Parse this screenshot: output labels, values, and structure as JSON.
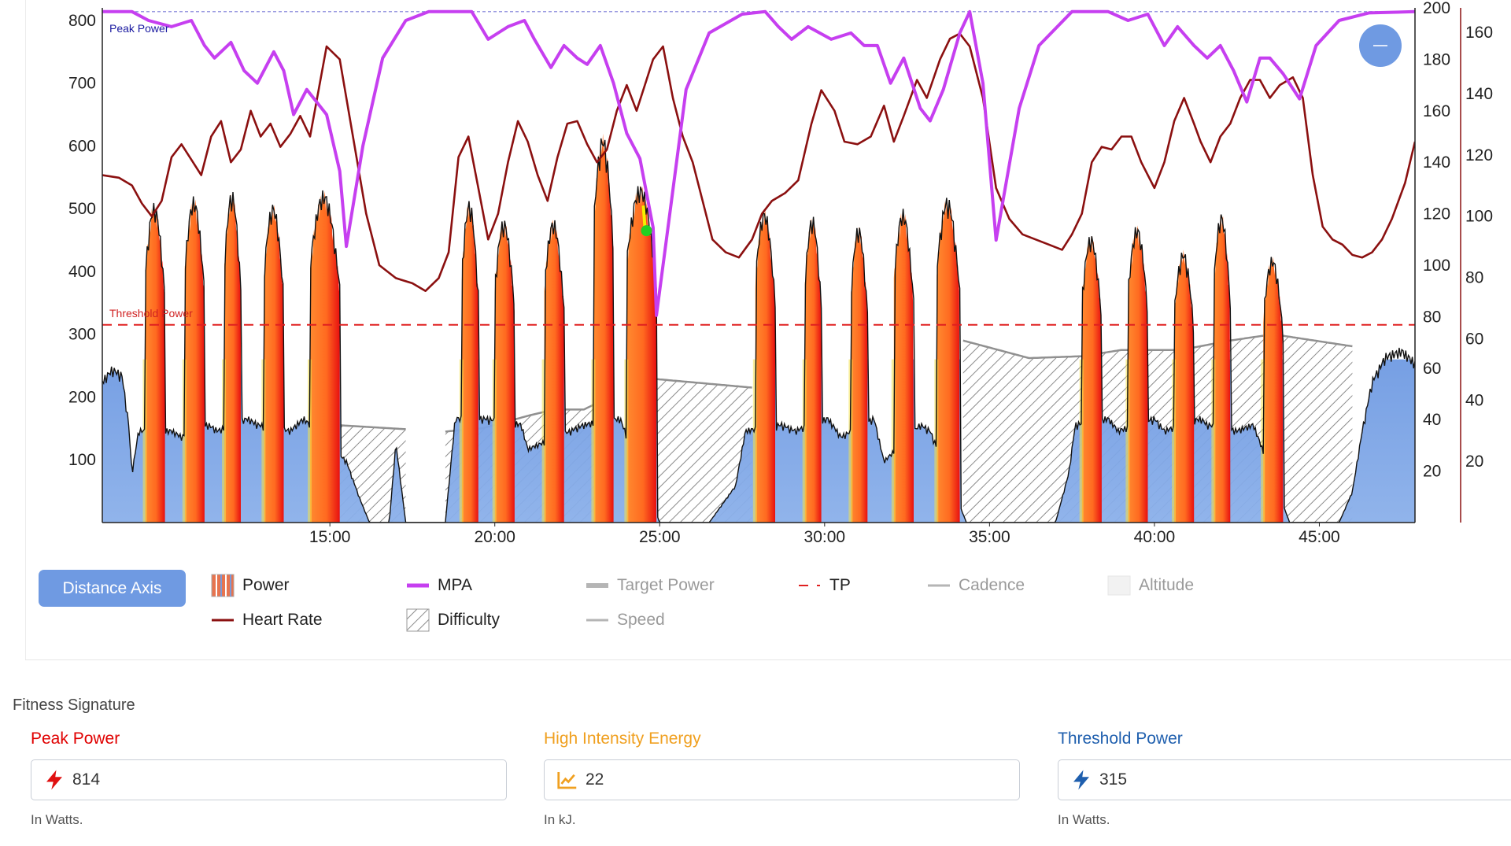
{
  "chart_data": {
    "type": "area",
    "x_unit": "minutes",
    "xlim": [
      8.1,
      47.9
    ],
    "x_ticks": [
      {
        "value": 15,
        "label": "15:00"
      },
      {
        "value": 20,
        "label": "20:00"
      },
      {
        "value": 25,
        "label": "25:00"
      },
      {
        "value": 30,
        "label": "30:00"
      },
      {
        "value": 35,
        "label": "35:00"
      },
      {
        "value": 40,
        "label": "40:00"
      },
      {
        "value": 45,
        "label": "45:00"
      }
    ],
    "left_axis": {
      "label": "",
      "ylim": [
        0,
        820
      ],
      "ticks": [
        100,
        200,
        300,
        400,
        500,
        600,
        700,
        800
      ]
    },
    "right_axis_1": {
      "label": "",
      "ylim": [
        0,
        200
      ],
      "ticks": [
        20,
        40,
        60,
        80,
        100,
        120,
        140,
        160,
        180,
        200
      ]
    },
    "right_axis_2": {
      "label": "",
      "ylim": [
        0,
        168
      ],
      "ticks": [
        20,
        40,
        60,
        80,
        100,
        120,
        140,
        160
      ]
    },
    "annotations": {
      "peak_power": "Peak Power",
      "threshold_power": "Threshold Power"
    },
    "peak_power_value": 814,
    "threshold_power_value": 315,
    "intervals": [
      {
        "start": 9.4,
        "end": 10.0,
        "peak": 510
      },
      {
        "start": 10.6,
        "end": 11.2,
        "peak": 520
      },
      {
        "start": 11.8,
        "end": 12.3,
        "peak": 530
      },
      {
        "start": 13.0,
        "end": 13.6,
        "peak": 510
      },
      {
        "start": 14.4,
        "end": 15.3,
        "peak": 530
      },
      {
        "start": 19.0,
        "end": 19.5,
        "peak": 515
      },
      {
        "start": 20.0,
        "end": 20.6,
        "peak": 485
      },
      {
        "start": 21.5,
        "end": 22.1,
        "peak": 485
      },
      {
        "start": 23.0,
        "end": 23.6,
        "peak": 620
      },
      {
        "start": 24.0,
        "end": 24.9,
        "peak": 540
      },
      {
        "start": 27.9,
        "end": 28.5,
        "peak": 500
      },
      {
        "start": 29.4,
        "end": 29.9,
        "peak": 490
      },
      {
        "start": 30.8,
        "end": 31.3,
        "peak": 475
      },
      {
        "start": 32.1,
        "end": 32.7,
        "peak": 500
      },
      {
        "start": 33.4,
        "end": 34.1,
        "peak": 520
      },
      {
        "start": 37.8,
        "end": 38.4,
        "peak": 460
      },
      {
        "start": 39.2,
        "end": 39.8,
        "peak": 475
      },
      {
        "start": 40.6,
        "end": 41.2,
        "peak": 435
      },
      {
        "start": 41.8,
        "end": 42.3,
        "peak": 495
      },
      {
        "start": 43.3,
        "end": 43.9,
        "peak": 425
      }
    ],
    "power_baseline": [
      [
        8.1,
        230
      ],
      [
        8.4,
        250
      ],
      [
        8.7,
        240
      ],
      [
        8.9,
        160
      ],
      [
        9.0,
        80
      ],
      [
        9.2,
        150
      ],
      [
        10.2,
        150
      ],
      [
        10.5,
        140
      ],
      [
        11.3,
        160
      ],
      [
        11.6,
        150
      ],
      [
        12.5,
        170
      ],
      [
        12.8,
        160
      ],
      [
        13.8,
        150
      ],
      [
        14.2,
        170
      ],
      [
        15.5,
        100
      ],
      [
        15.9,
        40
      ],
      [
        16.2,
        0
      ],
      [
        16.8,
        0
      ],
      [
        17.0,
        130
      ],
      [
        17.3,
        0
      ],
      [
        18.5,
        0
      ],
      [
        18.8,
        170
      ],
      [
        19.7,
        170
      ],
      [
        20.8,
        160
      ],
      [
        21.0,
        120
      ],
      [
        22.3,
        150
      ],
      [
        22.7,
        160
      ],
      [
        23.8,
        170
      ],
      [
        25.0,
        0
      ],
      [
        26.5,
        0
      ],
      [
        27.3,
        60
      ],
      [
        27.6,
        150
      ],
      [
        28.7,
        160
      ],
      [
        29.1,
        150
      ],
      [
        30.1,
        170
      ],
      [
        30.5,
        140
      ],
      [
        31.5,
        170
      ],
      [
        31.8,
        100
      ],
      [
        32.9,
        160
      ],
      [
        33.2,
        150
      ],
      [
        34.3,
        0
      ],
      [
        37.0,
        0
      ],
      [
        37.4,
        80
      ],
      [
        37.6,
        160
      ],
      [
        38.6,
        170
      ],
      [
        38.9,
        150
      ],
      [
        40.0,
        170
      ],
      [
        40.3,
        150
      ],
      [
        41.4,
        170
      ],
      [
        41.6,
        160
      ],
      [
        42.5,
        150
      ],
      [
        43.0,
        160
      ],
      [
        44.1,
        0
      ],
      [
        45.6,
        0
      ],
      [
        46.0,
        50
      ],
      [
        46.3,
        150
      ],
      [
        46.6,
        230
      ],
      [
        47.0,
        270
      ],
      [
        47.5,
        280
      ],
      [
        47.9,
        260
      ]
    ],
    "difficulty": [
      [
        15.3,
        155
      ],
      [
        18.5,
        145
      ],
      [
        19.6,
        150
      ],
      [
        21.0,
        170
      ],
      [
        21.8,
        180
      ],
      [
        22.7,
        180
      ],
      [
        24.6,
        230
      ],
      [
        27.8,
        215
      ],
      [
        28.7,
        215
      ],
      [
        30.0,
        230
      ],
      [
        31.4,
        245
      ],
      [
        32.7,
        250
      ],
      [
        34.2,
        290
      ],
      [
        36.2,
        262
      ],
      [
        37.8,
        265
      ],
      [
        39.0,
        275
      ],
      [
        40.8,
        275
      ],
      [
        42.3,
        290
      ],
      [
        43.6,
        300
      ],
      [
        47.6,
        268
      ]
    ],
    "difficulty_segments": [
      [
        15.3,
        17.3
      ],
      [
        18.5,
        23.0
      ],
      [
        24.6,
        27.8
      ],
      [
        34.2,
        46.0
      ]
    ],
    "heart_rate": [
      [
        8.1,
        135
      ],
      [
        8.6,
        134
      ],
      [
        9.0,
        131
      ],
      [
        9.3,
        124
      ],
      [
        9.6,
        119
      ],
      [
        9.9,
        125
      ],
      [
        10.2,
        142
      ],
      [
        10.5,
        147
      ],
      [
        10.8,
        141
      ],
      [
        11.1,
        135
      ],
      [
        11.4,
        150
      ],
      [
        11.7,
        156
      ],
      [
        12.0,
        140
      ],
      [
        12.3,
        145
      ],
      [
        12.6,
        160
      ],
      [
        12.9,
        150
      ],
      [
        13.2,
        155
      ],
      [
        13.5,
        146
      ],
      [
        13.8,
        151
      ],
      [
        14.1,
        158
      ],
      [
        14.4,
        150
      ],
      [
        14.9,
        185
      ],
      [
        15.3,
        180
      ],
      [
        15.7,
        150
      ],
      [
        16.1,
        120
      ],
      [
        16.5,
        100
      ],
      [
        17.0,
        95
      ],
      [
        17.5,
        93
      ],
      [
        17.9,
        90
      ],
      [
        18.3,
        95
      ],
      [
        18.6,
        105
      ],
      [
        18.9,
        142
      ],
      [
        19.2,
        150
      ],
      [
        19.5,
        130
      ],
      [
        19.8,
        110
      ],
      [
        20.1,
        120
      ],
      [
        20.4,
        140
      ],
      [
        20.7,
        156
      ],
      [
        21.0,
        148
      ],
      [
        21.3,
        135
      ],
      [
        21.6,
        125
      ],
      [
        21.9,
        142
      ],
      [
        22.2,
        155
      ],
      [
        22.5,
        156
      ],
      [
        22.8,
        147
      ],
      [
        23.1,
        140
      ],
      [
        23.4,
        145
      ],
      [
        23.7,
        160
      ],
      [
        24.0,
        170
      ],
      [
        24.3,
        160
      ],
      [
        24.6,
        172
      ],
      [
        24.8,
        180
      ],
      [
        25.1,
        185
      ],
      [
        25.4,
        165
      ],
      [
        25.7,
        150
      ],
      [
        26.0,
        140
      ],
      [
        26.3,
        125
      ],
      [
        26.6,
        110
      ],
      [
        27.0,
        105
      ],
      [
        27.4,
        103
      ],
      [
        27.8,
        110
      ],
      [
        28.1,
        120
      ],
      [
        28.4,
        125
      ],
      [
        28.8,
        128
      ],
      [
        29.2,
        133
      ],
      [
        29.6,
        155
      ],
      [
        29.9,
        168
      ],
      [
        30.3,
        160
      ],
      [
        30.6,
        148
      ],
      [
        31.0,
        147
      ],
      [
        31.4,
        150
      ],
      [
        31.8,
        162
      ],
      [
        32.1,
        148
      ],
      [
        32.4,
        158
      ],
      [
        32.8,
        172
      ],
      [
        33.1,
        165
      ],
      [
        33.5,
        180
      ],
      [
        33.8,
        188
      ],
      [
        34.1,
        190
      ],
      [
        34.4,
        185
      ],
      [
        34.8,
        165
      ],
      [
        35.2,
        130
      ],
      [
        35.6,
        118
      ],
      [
        36.0,
        112
      ],
      [
        36.4,
        110
      ],
      [
        36.8,
        108
      ],
      [
        37.2,
        106
      ],
      [
        37.5,
        112
      ],
      [
        37.8,
        120
      ],
      [
        38.1,
        140
      ],
      [
        38.4,
        146
      ],
      [
        38.7,
        145
      ],
      [
        39.0,
        150
      ],
      [
        39.3,
        150
      ],
      [
        39.6,
        140
      ],
      [
        40.0,
        130
      ],
      [
        40.3,
        140
      ],
      [
        40.6,
        156
      ],
      [
        40.9,
        165
      ],
      [
        41.2,
        155
      ],
      [
        41.4,
        148
      ],
      [
        41.7,
        140
      ],
      [
        42.0,
        150
      ],
      [
        42.3,
        155
      ],
      [
        42.6,
        165
      ],
      [
        42.9,
        172
      ],
      [
        43.2,
        172
      ],
      [
        43.5,
        165
      ],
      [
        43.8,
        170
      ],
      [
        44.2,
        173
      ],
      [
        44.5,
        165
      ],
      [
        44.8,
        135
      ],
      [
        45.1,
        115
      ],
      [
        45.4,
        110
      ],
      [
        45.7,
        108
      ],
      [
        46.0,
        104
      ],
      [
        46.3,
        103
      ],
      [
        46.6,
        105
      ],
      [
        46.9,
        110
      ],
      [
        47.2,
        118
      ],
      [
        47.6,
        132
      ],
      [
        47.9,
        148
      ]
    ],
    "mpa": [
      [
        8.1,
        814
      ],
      [
        9.0,
        814
      ],
      [
        9.5,
        800
      ],
      [
        10.2,
        790
      ],
      [
        10.8,
        800
      ],
      [
        11.2,
        760
      ],
      [
        11.5,
        740
      ],
      [
        12.0,
        765
      ],
      [
        12.4,
        720
      ],
      [
        12.8,
        700
      ],
      [
        13.3,
        750
      ],
      [
        13.6,
        720
      ],
      [
        13.9,
        650
      ],
      [
        14.3,
        690
      ],
      [
        14.9,
        650
      ],
      [
        15.3,
        560
      ],
      [
        15.5,
        440
      ],
      [
        16.0,
        600
      ],
      [
        16.6,
        740
      ],
      [
        17.3,
        800
      ],
      [
        18.0,
        814
      ],
      [
        19.3,
        814
      ],
      [
        19.8,
        770
      ],
      [
        20.4,
        790
      ],
      [
        20.9,
        800
      ],
      [
        21.2,
        770
      ],
      [
        21.7,
        725
      ],
      [
        22.1,
        760
      ],
      [
        22.5,
        740
      ],
      [
        22.8,
        730
      ],
      [
        23.2,
        760
      ],
      [
        23.6,
        700
      ],
      [
        24.0,
        620
      ],
      [
        24.4,
        580
      ],
      [
        24.8,
        470
      ],
      [
        24.9,
        330
      ],
      [
        25.2,
        450
      ],
      [
        25.8,
        690
      ],
      [
        26.5,
        780
      ],
      [
        27.5,
        810
      ],
      [
        28.2,
        814
      ],
      [
        28.6,
        790
      ],
      [
        29.0,
        770
      ],
      [
        29.5,
        790
      ],
      [
        30.2,
        770
      ],
      [
        30.8,
        780
      ],
      [
        31.2,
        760
      ],
      [
        31.6,
        760
      ],
      [
        32.0,
        700
      ],
      [
        32.4,
        740
      ],
      [
        32.9,
        660
      ],
      [
        33.2,
        640
      ],
      [
        33.6,
        690
      ],
      [
        34.1,
        780
      ],
      [
        34.4,
        814
      ],
      [
        34.8,
        700
      ],
      [
        35.2,
        450
      ],
      [
        35.9,
        660
      ],
      [
        36.5,
        760
      ],
      [
        37.5,
        814
      ],
      [
        38.6,
        814
      ],
      [
        39.2,
        800
      ],
      [
        39.8,
        810
      ],
      [
        40.3,
        760
      ],
      [
        40.7,
        790
      ],
      [
        41.2,
        760
      ],
      [
        41.6,
        740
      ],
      [
        42.0,
        760
      ],
      [
        42.4,
        720
      ],
      [
        42.8,
        670
      ],
      [
        43.2,
        740
      ],
      [
        43.5,
        740
      ],
      [
        43.9,
        715
      ],
      [
        44.4,
        675
      ],
      [
        44.9,
        760
      ],
      [
        45.6,
        800
      ],
      [
        46.5,
        812
      ],
      [
        47.9,
        814
      ]
    ],
    "marker": {
      "x": 24.6,
      "y": 465
    }
  },
  "legend": {
    "distance_axis_button": "Distance Axis",
    "items": [
      {
        "label": "Power",
        "active": true
      },
      {
        "label": "MPA",
        "active": true
      },
      {
        "label": "Target Power",
        "active": false
      },
      {
        "label": "TP",
        "active": true
      },
      {
        "label": "Cadence",
        "active": false
      },
      {
        "label": "Altitude",
        "active": false
      },
      {
        "label": "Heart Rate",
        "active": true
      },
      {
        "label": "Difficulty",
        "active": true
      },
      {
        "label": "Speed",
        "active": false
      }
    ]
  },
  "colors": {
    "mpa": "#c63ff0",
    "heart_rate": "#8b1010",
    "threshold": "#e02020",
    "power_low": "#6f9ae2",
    "power_high": "#f07c2c",
    "peak_power_label": "#e00000",
    "high_intensity_label": "#f0a020",
    "threshold_power_label": "#1f5fae"
  },
  "fitness_signature": {
    "title": "Fitness Signature",
    "metrics": [
      {
        "label": "Peak Power",
        "value": "814",
        "unit": "In Watts.",
        "icon": "bolt-icon"
      },
      {
        "label": "High Intensity Energy",
        "value": "22",
        "unit": "In kJ.",
        "icon": "trend-icon"
      },
      {
        "label": "Threshold Power",
        "value": "315",
        "unit": "In Watts.",
        "icon": "bolt-icon"
      }
    ]
  }
}
